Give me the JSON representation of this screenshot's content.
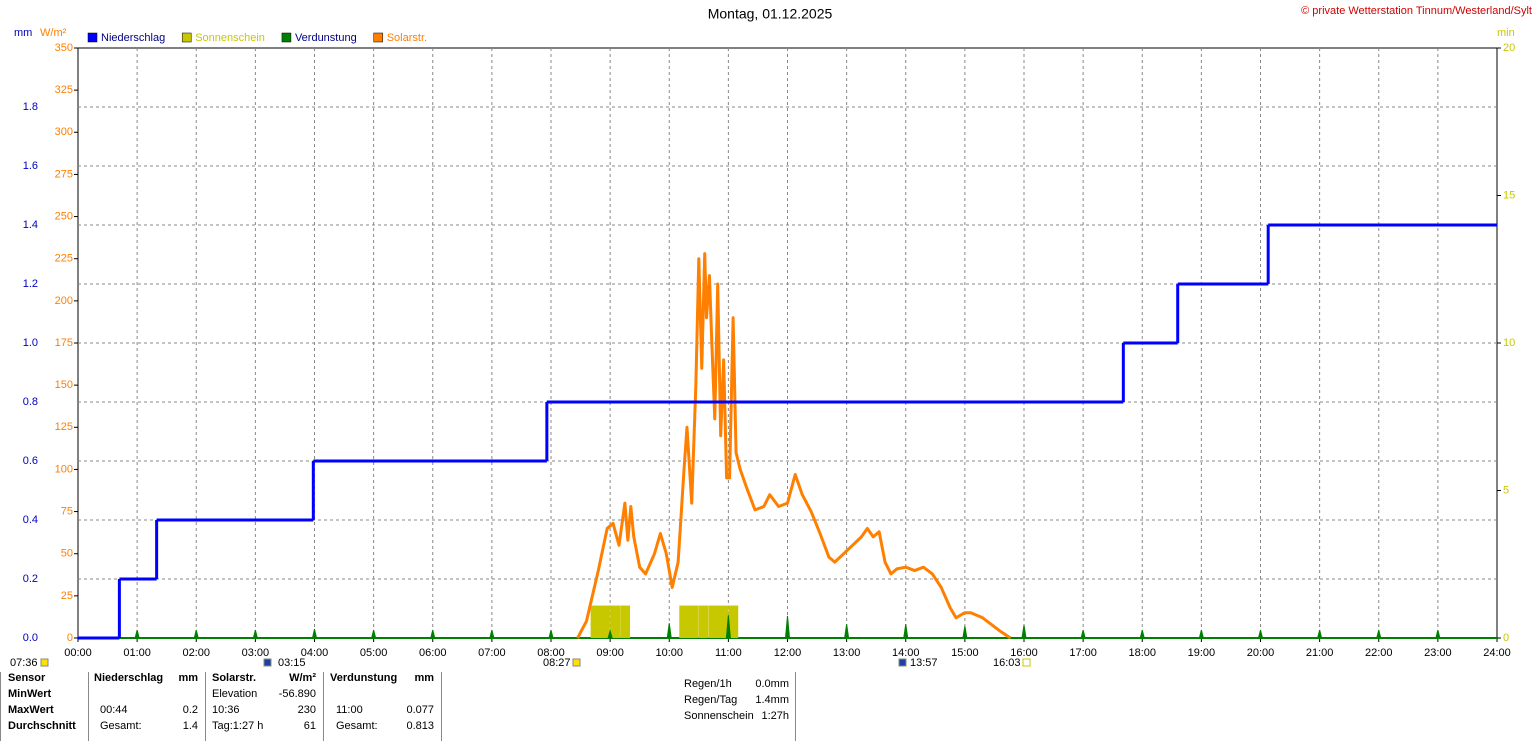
{
  "chart_data": {
    "type": "weather",
    "title": "Montag, 01.12.2025",
    "copyright": "© private Wetterstation Tinnum/Westerland/Sylt",
    "ylabel": "mm",
    "y2label": "W/m²",
    "y3label": "min",
    "xlim": [
      0,
      24
    ],
    "xticks": [
      {
        "value": 0,
        "label": "00:00"
      },
      {
        "value": 1,
        "label": "01:00"
      },
      {
        "value": 2,
        "label": "02:00"
      },
      {
        "value": 3,
        "label": "03:00"
      },
      {
        "value": 4,
        "label": "04:00"
      },
      {
        "value": 5,
        "label": "05:00"
      },
      {
        "value": 6,
        "label": "06:00"
      },
      {
        "value": 7,
        "label": "07:00"
      },
      {
        "value": 8,
        "label": "08:00"
      },
      {
        "value": 9,
        "label": "09:00"
      },
      {
        "value": 10,
        "label": "10:00"
      },
      {
        "value": 11,
        "label": "11:00"
      },
      {
        "value": 12,
        "label": "12:00"
      },
      {
        "value": 13,
        "label": "13:00"
      },
      {
        "value": 14,
        "label": "14:00"
      },
      {
        "value": 15,
        "label": "15:00"
      },
      {
        "value": 16,
        "label": "16:00"
      },
      {
        "value": 17,
        "label": "17:00"
      },
      {
        "value": 18,
        "label": "18:00"
      },
      {
        "value": 19,
        "label": "19:00"
      },
      {
        "value": 20,
        "label": "20:00"
      },
      {
        "value": 21,
        "label": "21:00"
      },
      {
        "value": 22,
        "label": "22:00"
      },
      {
        "value": 23,
        "label": "23:00"
      },
      {
        "value": 24,
        "label": "24:00"
      }
    ],
    "ylim": [
      0,
      2
    ],
    "yticks": [
      {
        "value": 0,
        "label": "0.0"
      },
      0.2,
      0.4,
      0.6,
      0.8,
      {
        "value": 1,
        "label": "1.0"
      },
      1.2,
      1.4,
      1.6,
      1.8
    ],
    "y2lim": [
      0,
      350
    ],
    "y2ticks": [
      0,
      25,
      50,
      75,
      100,
      125,
      150,
      175,
      200,
      225,
      250,
      275,
      300,
      325,
      350
    ],
    "y3lim": [
      0,
      20
    ],
    "y3ticks": [
      0,
      5,
      10,
      15,
      20
    ],
    "grid": true,
    "series": [
      {
        "name": "Niederschlag",
        "color": "#0000ff",
        "text_color": "#000080",
        "axis": "y",
        "style": "step",
        "x": [
          0,
          0.7,
          1.33,
          3.98,
          7.93,
          17.68,
          18.6,
          20.13
        ],
        "values": [
          0,
          0.2,
          0.4,
          0.6,
          0.8,
          1.0,
          1.2,
          1.4
        ]
      },
      {
        "name": "Sonnenschein",
        "color": "#c8c800",
        "text_color": "#c8c800",
        "axis": "y3",
        "style": "bar",
        "x": [
          8.67,
          8.83,
          9.0,
          9.17,
          10.17,
          10.33,
          10.5,
          10.67,
          10.83,
          11.0
        ],
        "values": [
          1.1,
          1.1,
          1.1,
          1.1,
          1.1,
          1.1,
          1.1,
          1.1,
          1.1,
          1.1
        ]
      },
      {
        "name": "Verdunstung",
        "color": "#008000",
        "text_color": "#000080",
        "axis": "y",
        "style": "spike",
        "x": [
          1,
          2,
          3,
          4,
          5,
          6,
          7,
          8,
          9,
          10,
          11,
          12,
          13,
          14,
          15,
          16,
          17,
          18,
          19,
          20,
          21,
          22,
          23
        ],
        "values": [
          0.027,
          0.027,
          0.027,
          0.03,
          0.027,
          0.027,
          0.027,
          0.027,
          0.024,
          0.05,
          0.077,
          0.075,
          0.047,
          0.047,
          0.04,
          0.044,
          0.027,
          0.027,
          0.027,
          0.027,
          0.027,
          0.027,
          0.027
        ]
      },
      {
        "name": "Solarstr.",
        "color": "#ff7f00",
        "text_color": "#ff7f00",
        "axis": "y2",
        "style": "line",
        "x": [
          8.45,
          8.6,
          8.8,
          8.95,
          9.05,
          9.15,
          9.25,
          9.3,
          9.35,
          9.4,
          9.5,
          9.6,
          9.75,
          9.85,
          9.95,
          10.05,
          10.15,
          10.25,
          10.3,
          10.38,
          10.45,
          10.5,
          10.55,
          10.6,
          10.63,
          10.68,
          10.72,
          10.77,
          10.82,
          10.87,
          10.92,
          10.97,
          11.02,
          11.08,
          11.13,
          11.2,
          11.3,
          11.45,
          11.6,
          11.7,
          11.85,
          12.0,
          12.13,
          12.25,
          12.4,
          12.55,
          12.7,
          12.8,
          12.95,
          13.1,
          13.25,
          13.35,
          13.45,
          13.55,
          13.65,
          13.75,
          13.85,
          14.0,
          14.15,
          14.3,
          14.45,
          14.6,
          14.75,
          14.85,
          15.0,
          15.1,
          15.3,
          15.45,
          15.6,
          15.77
        ],
        "values": [
          0,
          10,
          40,
          65,
          68,
          55,
          80,
          58,
          78,
          60,
          42,
          38,
          50,
          62,
          50,
          30,
          45,
          100,
          125,
          80,
          150,
          225,
          160,
          228,
          190,
          215,
          175,
          130,
          210,
          120,
          165,
          95,
          95,
          190,
          110,
          100,
          90,
          76,
          78,
          85,
          78,
          80,
          97,
          85,
          75,
          62,
          48,
          45,
          50,
          55,
          60,
          65,
          60,
          63,
          45,
          38,
          41,
          42,
          40,
          42,
          38,
          30,
          18,
          12,
          15,
          15,
          12,
          8,
          4,
          0
        ]
      }
    ],
    "sun_events": [
      "07:36",
      "03:15",
      "08:27",
      "13:57",
      "16:03"
    ]
  },
  "stats": {
    "header": [
      "Sensor",
      "Niederschlag",
      "mm",
      "Solarstr.",
      "W/m²",
      "Verdunstung",
      "mm"
    ],
    "rows": [
      [
        "MinWert",
        "",
        "",
        "Elevation",
        "-56.890",
        "",
        ""
      ],
      [
        "MaxWert",
        "00:44",
        "0.2",
        "10:36",
        "230",
        "11:00",
        "0.077"
      ],
      [
        "Durchschnitt",
        "Gesamt:",
        "1.4",
        "Tag:1:27 h",
        "61",
        "Gesamt:",
        "0.813"
      ]
    ],
    "summary": [
      [
        "Regen/1h",
        "0.0mm"
      ],
      [
        "Regen/Tag",
        "1.4mm"
      ],
      [
        "Sonnenschein",
        "1:27h"
      ]
    ]
  }
}
